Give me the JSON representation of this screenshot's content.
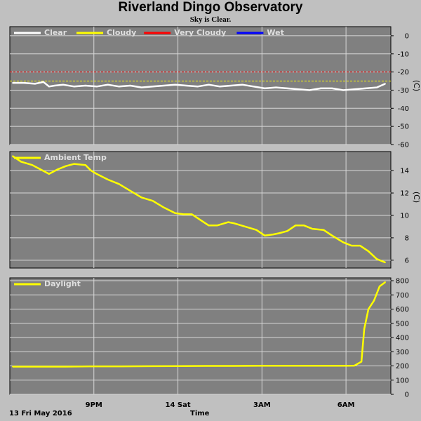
{
  "header": {
    "title": "Riverland Dingo Observatory",
    "subtitle": "Sky is Clear."
  },
  "footer": {
    "date_label": "13 Fri May 2016",
    "time_label": "Time"
  },
  "colors": {
    "background": "#c0c0c0",
    "plot_bg": "#808080",
    "grid": "#d8d8d8",
    "clear": "#ffffff",
    "cloudy": "#ffff00",
    "very_cloudy": "#ff0000",
    "wet": "#0000ff",
    "ambient": "#ffff00",
    "daylight": "#ffff00"
  },
  "chart_data": [
    {
      "type": "line",
      "name": "sky",
      "legend": [
        {
          "label": "Clear",
          "color": "#ffffff"
        },
        {
          "label": "Cloudy",
          "color": "#ffff00"
        },
        {
          "label": "Very Cloudy",
          "color": "#ff0000"
        },
        {
          "label": "Wet",
          "color": "#0000ff"
        }
      ],
      "ylabel": "(C)",
      "ylim": [
        -60,
        5
      ],
      "yticks": [
        0,
        -10,
        -20,
        -30,
        -40,
        -50,
        -60
      ],
      "xlim": [
        18.0,
        29.6
      ],
      "xticks": [
        {
          "x": 21,
          "label": "9PM"
        },
        {
          "x": 24,
          "label": "14 Sat"
        },
        {
          "x": 27,
          "label": "3AM"
        },
        {
          "x": 30,
          "label": "6AM"
        }
      ],
      "thresholds": [
        {
          "name": "Cloudy",
          "value": -25,
          "color": "#ffff00"
        },
        {
          "name": "Very Cloudy",
          "value": -20,
          "color": "#ff0000"
        }
      ],
      "series": [
        {
          "name": "Clear",
          "color": "#ffffff",
          "x": [
            18.1,
            18.5,
            18.9,
            19.2,
            19.4,
            19.6,
            19.9,
            20.3,
            20.7,
            21.1,
            21.5,
            21.9,
            22.3,
            22.7,
            23.1,
            23.5,
            23.9,
            24.3,
            24.7,
            25.1,
            25.5,
            25.9,
            26.3,
            26.7,
            27.1,
            27.5,
            27.9,
            28.3,
            28.7,
            29.1,
            29.5,
            29.9,
            30.3,
            30.7,
            31.1,
            31.4
          ],
          "y": [
            -26,
            -26,
            -26.5,
            -25.5,
            -28,
            -27.5,
            -27,
            -28,
            -27.5,
            -28,
            -27,
            -28,
            -27.5,
            -28.5,
            -28,
            -27.5,
            -27,
            -27.5,
            -28,
            -27,
            -28,
            -27.5,
            -27,
            -28,
            -29,
            -28.5,
            -29,
            -29.5,
            -30,
            -29,
            -29,
            -30,
            -29.5,
            -29,
            -28.5,
            -26.5
          ]
        }
      ]
    },
    {
      "type": "line",
      "name": "ambient",
      "legend": [
        {
          "label": "Ambient Temp",
          "color": "#ffff00"
        }
      ],
      "ylabel": "(C)",
      "ylim": [
        5.3,
        15.7
      ],
      "yticks": [
        6,
        8,
        10,
        12,
        14
      ],
      "series": [
        {
          "name": "Ambient Temp",
          "color": "#ffff00",
          "x": [
            18.1,
            18.4,
            18.8,
            19.1,
            19.4,
            19.7,
            20.0,
            20.3,
            20.7,
            20.9,
            21.1,
            21.5,
            21.9,
            22.3,
            22.7,
            23.1,
            23.5,
            23.9,
            24.2,
            24.5,
            24.8,
            25.1,
            25.4,
            25.8,
            26.0,
            26.4,
            26.8,
            27.1,
            27.4,
            27.6,
            27.9,
            28.2,
            28.5,
            28.8,
            29.2,
            29.5,
            29.9,
            30.2,
            30.5,
            30.8,
            31.1,
            31.4
          ],
          "y": [
            15.3,
            14.8,
            14.5,
            14.1,
            13.7,
            14.1,
            14.4,
            14.6,
            14.5,
            14.0,
            13.7,
            13.2,
            12.8,
            12.2,
            11.6,
            11.3,
            10.7,
            10.2,
            10.1,
            10.1,
            9.6,
            9.1,
            9.1,
            9.4,
            9.3,
            9.0,
            8.7,
            8.2,
            8.3,
            8.4,
            8.6,
            9.1,
            9.1,
            8.8,
            8.7,
            8.2,
            7.6,
            7.3,
            7.3,
            6.8,
            6.1,
            5.8
          ]
        }
      ]
    },
    {
      "type": "line",
      "name": "daylight",
      "legend": [
        {
          "label": "Daylight",
          "color": "#ffff00"
        }
      ],
      "ylabel": "",
      "ylim": [
        0,
        820
      ],
      "yticks": [
        0,
        100,
        200,
        300,
        400,
        500,
        600,
        700,
        800
      ],
      "series": [
        {
          "name": "Daylight",
          "color": "#ffff00",
          "x": [
            18.1,
            19.0,
            20.0,
            21.0,
            22.0,
            23.0,
            24.0,
            25.0,
            26.0,
            27.0,
            28.0,
            29.0,
            30.0,
            30.3,
            30.55,
            30.65,
            30.8,
            31.0,
            31.2,
            31.4
          ],
          "y": [
            195,
            195,
            195,
            197,
            197,
            198,
            199,
            200,
            200,
            201,
            201,
            201,
            201,
            202,
            230,
            460,
            600,
            660,
            760,
            790
          ]
        }
      ]
    }
  ]
}
